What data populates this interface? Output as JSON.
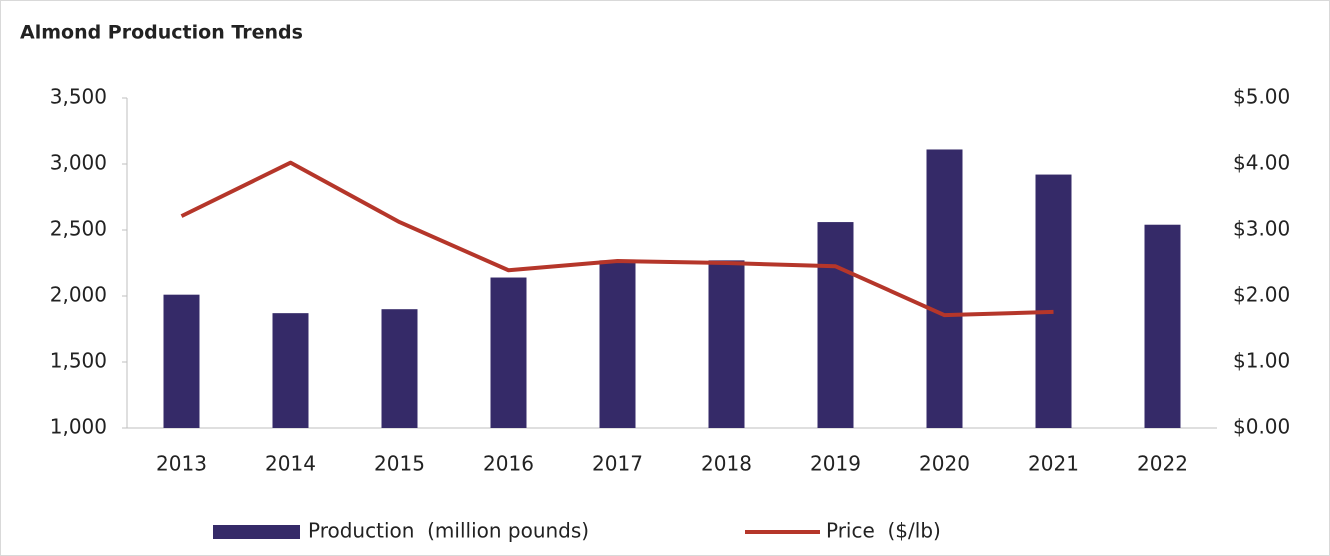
{
  "chart_data": {
    "type": "bar-line",
    "title": "Almond Production Trends",
    "categories": [
      "2013",
      "2014",
      "2015",
      "2016",
      "2017",
      "2018",
      "2019",
      "2020",
      "2021",
      "2022"
    ],
    "series": [
      {
        "name": "Production  (million pounds)",
        "color": "#352a68",
        "type": "bar",
        "values": [
          2010,
          1870,
          1900,
          2140,
          2270,
          2270,
          2560,
          3110,
          2920,
          2540
        ]
      },
      {
        "name": "Price  ($/lb)",
        "color": "#b5362a",
        "type": "line",
        "axis": "y2",
        "values": [
          3.21,
          4.02,
          3.12,
          2.39,
          2.53,
          2.5,
          2.45,
          1.71,
          1.76,
          null
        ]
      }
    ],
    "ylim": [
      1000,
      3500
    ],
    "yticks": [
      {
        "value": 1000,
        "label": "1,000"
      },
      {
        "value": 1500,
        "label": "1,500"
      },
      {
        "value": 2000,
        "label": "2,000"
      },
      {
        "value": 2500,
        "label": "2,500"
      },
      {
        "value": 3000,
        "label": "3,000"
      },
      {
        "value": 3500,
        "label": "3,500"
      }
    ],
    "y2lim": [
      0,
      5
    ],
    "y2ticks": [
      {
        "value": 0,
        "label": "$0.00"
      },
      {
        "value": 1,
        "label": "$1.00"
      },
      {
        "value": 2,
        "label": "$2.00"
      },
      {
        "value": 3,
        "label": "$3.00"
      },
      {
        "value": 4,
        "label": "$4.00"
      },
      {
        "value": 5,
        "label": "$5.00"
      }
    ],
    "legend": "bottom"
  }
}
